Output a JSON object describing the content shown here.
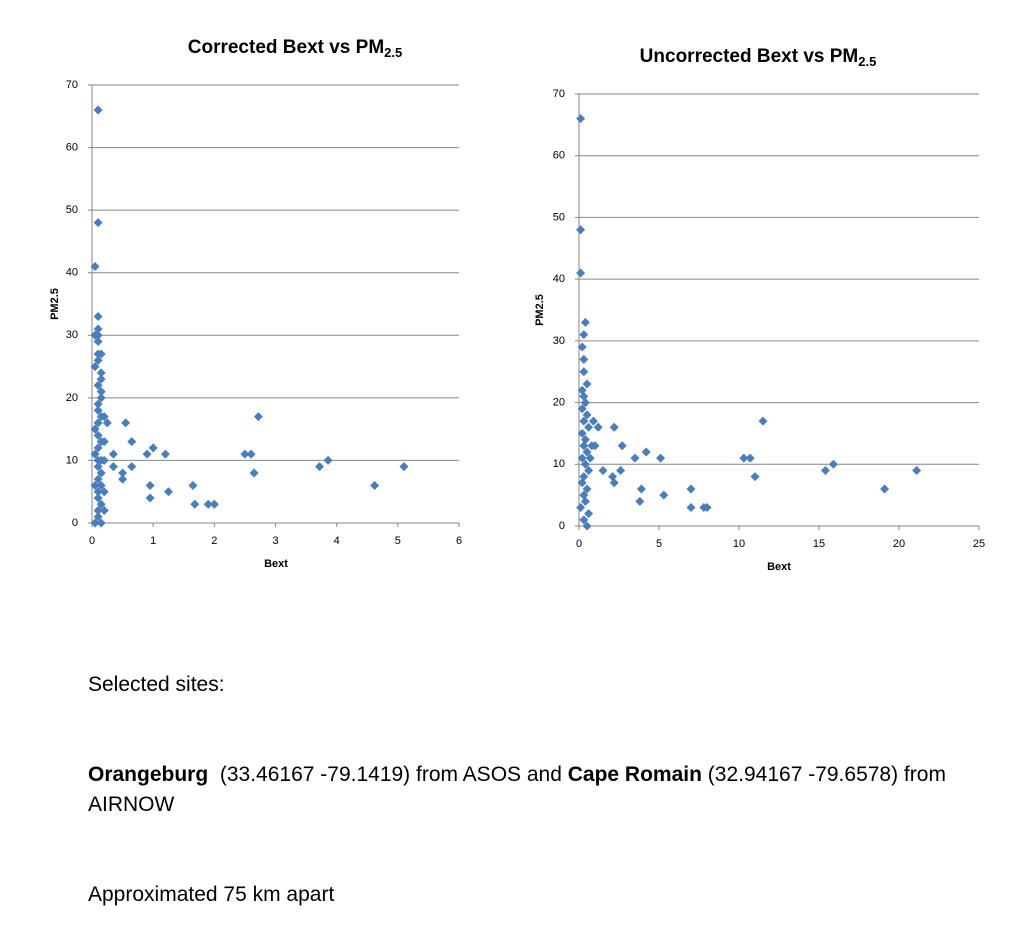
{
  "chart_data": [
    {
      "type": "scatter",
      "title": "Corrected Bext vs PM",
      "title_subscript": "2.5",
      "x_label": "Bext",
      "y_label": "PM2.5",
      "color": "#4a7ebb",
      "grid": true,
      "xlim": [
        0,
        6
      ],
      "xticks": [
        0,
        1,
        2,
        3,
        4,
        5,
        6
      ],
      "ylim": [
        0,
        70
      ],
      "yticks": [
        0,
        10,
        20,
        30,
        40,
        50,
        60,
        70
      ],
      "x": [
        0.1,
        0.1,
        0.05,
        0.1,
        0.1,
        0.1,
        0.05,
        0.1,
        0.1,
        0.15,
        0.1,
        0.05,
        0.15,
        0.15,
        0.1,
        0.15,
        0.15,
        0.1,
        0.1,
        0.15,
        0.2,
        0.25,
        0.1,
        0.05,
        0.1,
        0.15,
        0.2,
        0.1,
        0.05,
        0.1,
        0.15,
        0.2,
        0.1,
        0.15,
        0.1,
        0.05,
        0.15,
        0.1,
        0.2,
        0.1,
        0.15,
        0.1,
        0.2,
        0.1,
        0.05,
        0.15,
        0.35,
        0.35,
        0.5,
        0.5,
        0.55,
        0.65,
        0.65,
        0.9,
        0.95,
        0.95,
        1.0,
        1.2,
        1.25,
        1.65,
        1.68,
        1.9,
        2.0,
        2.5,
        2.6,
        2.65,
        2.72,
        3.72,
        3.86,
        4.62,
        5.1
      ],
      "values": [
        66,
        48,
        41,
        33,
        31,
        30,
        30,
        29,
        27,
        27,
        26,
        25,
        24,
        23,
        22,
        21,
        20,
        19,
        18,
        17,
        17,
        16,
        16,
        15,
        14,
        13,
        13,
        12,
        11,
        10,
        10,
        10,
        9,
        8,
        7,
        6,
        6,
        5,
        5,
        4,
        3,
        2,
        2,
        1,
        0,
        0,
        11,
        9,
        8,
        7,
        16,
        13,
        9,
        11,
        6,
        4,
        12,
        11,
        5,
        6,
        3,
        3,
        3,
        11,
        11,
        8,
        17,
        9,
        10,
        6,
        9
      ]
    },
    {
      "type": "scatter",
      "title": "Uncorrected Bext vs PM",
      "title_subscript": "2.5",
      "x_label": "Bext",
      "y_label": "PM2.5",
      "color": "#4a7ebb",
      "grid": true,
      "xlim": [
        0,
        25
      ],
      "xticks": [
        0,
        5,
        10,
        15,
        20,
        25
      ],
      "ylim": [
        0,
        70
      ],
      "yticks": [
        0,
        10,
        20,
        30,
        40,
        50,
        60,
        70
      ],
      "x": [
        0.1,
        0.1,
        0.1,
        0.4,
        0.3,
        0.2,
        0.3,
        0.3,
        0.5,
        0.2,
        0.3,
        0.4,
        0.2,
        0.5,
        0.3,
        0.6,
        0.2,
        0.4,
        0.3,
        0.5,
        0.2,
        0.4,
        0.6,
        0.3,
        0.2,
        0.5,
        0.3,
        0.4,
        0.1,
        0.6,
        0.3,
        0.5,
        0.9,
        1.2,
        0.8,
        1.0,
        0.7,
        1.5,
        2.1,
        2.2,
        2.2,
        2.7,
        2.6,
        3.5,
        3.9,
        3.8,
        4.2,
        5.1,
        5.3,
        7.0,
        7.0,
        7.8,
        8.0,
        10.3,
        10.7,
        11.0,
        11.5,
        15.4,
        15.9,
        19.1,
        21.1
      ],
      "values": [
        66,
        48,
        41,
        33,
        31,
        29,
        27,
        25,
        23,
        22,
        21,
        20,
        19,
        18,
        17,
        16,
        15,
        14,
        13,
        12,
        11,
        10,
        9,
        8,
        7,
        6,
        5,
        4,
        3,
        2,
        1,
        0,
        17,
        16,
        13,
        13,
        11,
        9,
        8,
        7,
        16,
        13,
        9,
        11,
        6,
        4,
        12,
        11,
        5,
        6,
        3,
        3,
        3,
        11,
        11,
        8,
        17,
        9,
        10,
        6,
        9
      ]
    }
  ],
  "notes": {
    "heading": "Selected sites:",
    "runs": [
      {
        "text": "Orangeburg",
        "bold": true
      },
      {
        "text": "  (33.46167 -79.1419) from ASOS and ",
        "bold": false
      },
      {
        "text": "Cape Romain",
        "bold": true
      },
      {
        "text": " (32.94167 -79.6578) from AIRNOW",
        "bold": false
      }
    ],
    "footer": "Approximated 75 km apart"
  }
}
